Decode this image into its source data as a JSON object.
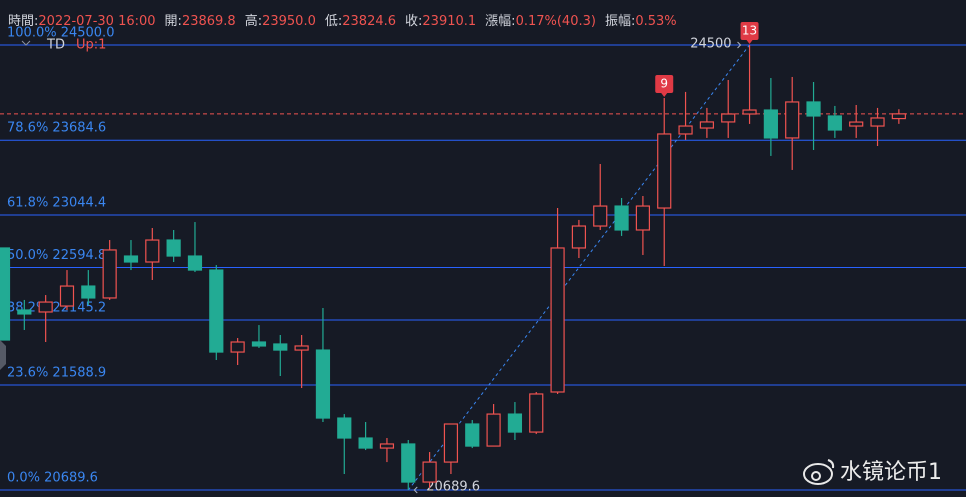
{
  "header": {
    "items": [
      {
        "label": "時間:",
        "value": "2022-07-30 16:00"
      },
      {
        "label": "開:",
        "value": "23869.8"
      },
      {
        "label": "高:",
        "value": "23950.0"
      },
      {
        "label": "低:",
        "value": "23824.6"
      },
      {
        "label": "收:",
        "value": "23910.1"
      },
      {
        "label": "漲幅:",
        "value": "0.17%(40.3)"
      },
      {
        "label": "振幅:",
        "value": "0.53%"
      }
    ]
  },
  "legend": {
    "indicator": "TD",
    "setting": "Up:1"
  },
  "watermark": "水镜论币1",
  "chart_data": {
    "type": "candlestick",
    "categories": [
      null,
      null,
      null,
      null,
      null,
      null,
      null,
      null,
      null,
      null,
      null,
      null,
      null,
      null,
      null,
      null,
      null,
      null,
      null,
      null,
      null,
      null,
      null,
      null,
      null,
      null,
      null,
      null,
      null,
      null,
      null,
      null,
      null,
      null,
      null,
      null,
      null,
      null,
      null,
      null,
      null,
      null,
      null
    ],
    "open": [
      22762,
      22231,
      22214,
      22265,
      22436,
      22334,
      22693,
      22642,
      22830,
      22693,
      22573,
      21871,
      21957,
      21940,
      21888,
      21888,
      21306,
      21135,
      21049,
      21084,
      20758,
      20929,
      21255,
      21066,
      21340,
      21186,
      21529,
      22762,
      22950,
      23121,
      22916,
      23104,
      23738,
      23789,
      23841,
      23909,
      23943,
      23704,
      24012,
      23892,
      23806,
      23806,
      23869.8
    ],
    "high": [
      22762,
      22317,
      22359,
      22573,
      22573,
      22830,
      22830,
      22933,
      22916,
      22984,
      22616,
      21991,
      22102,
      22017,
      22017,
      22248,
      21340,
      21272,
      21135,
      21118,
      21015,
      21255,
      21289,
      21426,
      21443,
      21529,
      23104,
      23002,
      23481,
      23190,
      23207,
      24046,
      24098,
      23961,
      24200,
      24500,
      24217,
      24226,
      24183,
      23978,
      23986,
      23961,
      23950.0
    ],
    "low": [
      21974,
      22060,
      21957,
      22231,
      22274,
      22317,
      22573,
      22488,
      22642,
      22556,
      21803,
      21760,
      21906,
      21666,
      21563,
      21272,
      20827,
      21032,
      20929,
      20689.6,
      20707,
      20827,
      21049,
      21066,
      21118,
      21169,
      21512,
      22676,
      22916,
      22865,
      22702,
      22608,
      23687,
      23704,
      23704,
      23824,
      23550,
      23430,
      23601,
      23704,
      23704,
      23635,
      23824.6
    ],
    "close": [
      21974,
      22197,
      22299,
      22436,
      22334,
      22745,
      22642,
      22830,
      22693,
      22573,
      21871,
      21957,
      21923,
      21888,
      21923,
      21306,
      21135,
      21049,
      21084,
      20758,
      20929,
      21255,
      21066,
      21340,
      21186,
      21512,
      22762,
      22950,
      23121,
      22916,
      23121,
      23738,
      23806,
      23841,
      23909,
      23943,
      23704,
      24012,
      23892,
      23772,
      23840,
      23875,
      23910.1
    ],
    "up_color": "#ef5350",
    "down_color": "#22ab94",
    "ylim": [
      20630,
      24885
    ],
    "fib_color": "#2962ff",
    "fib_levels": [
      {
        "value": 24500,
        "label": "100.0% 24500.0"
      },
      {
        "value": 23684.6,
        "label": "78.6% 23684.6"
      },
      {
        "value": 23044.4,
        "label": "61.8% 23044.4"
      },
      {
        "value": 22594.8,
        "label": "50.0% 22594.8"
      },
      {
        "value": 22145.2,
        "label": "38.2% 22145.2"
      },
      {
        "value": 21588.9,
        "label": "23.6% 21588.9"
      },
      {
        "value": 20689.6,
        "label": "0.0% 20689.6"
      }
    ],
    "swing_labels": [
      20689.6,
      24500
    ],
    "td_counts": [
      null,
      null,
      null,
      null,
      null,
      null,
      null,
      null,
      null,
      null,
      null,
      null,
      null,
      null,
      null,
      null,
      null,
      null,
      null,
      null,
      null,
      null,
      null,
      null,
      null,
      null,
      null,
      null,
      null,
      null,
      null,
      9,
      null,
      null,
      null,
      13,
      null,
      null,
      null,
      null,
      null,
      null,
      null
    ],
    "last_price_line": true
  }
}
